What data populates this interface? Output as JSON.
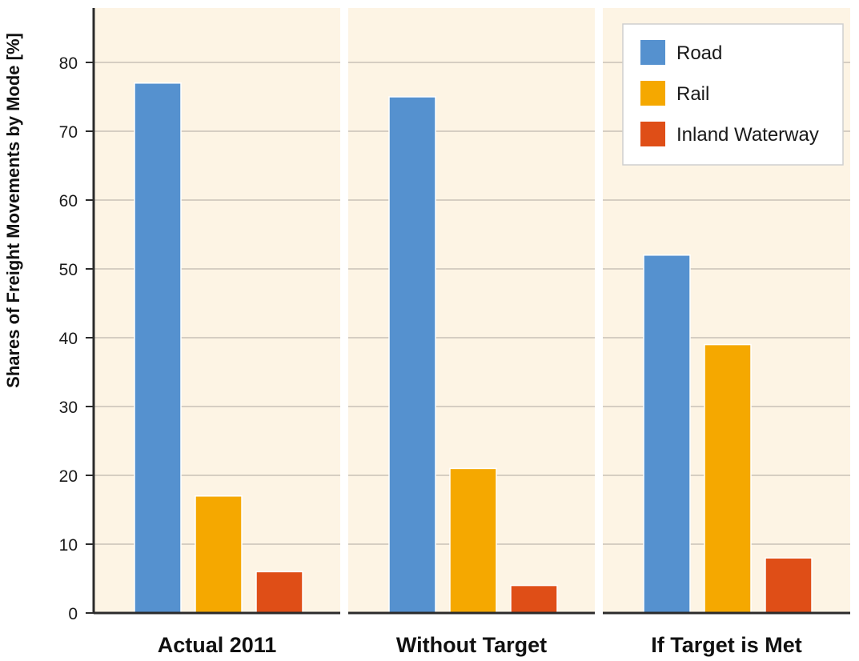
{
  "chart_data": {
    "type": "bar",
    "ylabel": "Shares of Freight Movements by Mode [%]",
    "ylim": [
      0,
      88
    ],
    "yticks": [
      0,
      10,
      20,
      30,
      40,
      50,
      60,
      70,
      80
    ],
    "grid": true,
    "legend_position": "top-right",
    "categories": [
      "Actual 2011",
      "Without Target",
      "If Target is Met"
    ],
    "series": [
      {
        "name": "Road",
        "color": "#5591cf",
        "values": [
          77,
          75,
          52
        ]
      },
      {
        "name": "Rail",
        "color": "#f5a800",
        "values": [
          17,
          21,
          39
        ]
      },
      {
        "name": "Inland Waterway",
        "color": "#df4e17",
        "values": [
          6,
          4,
          8
        ]
      }
    ]
  }
}
